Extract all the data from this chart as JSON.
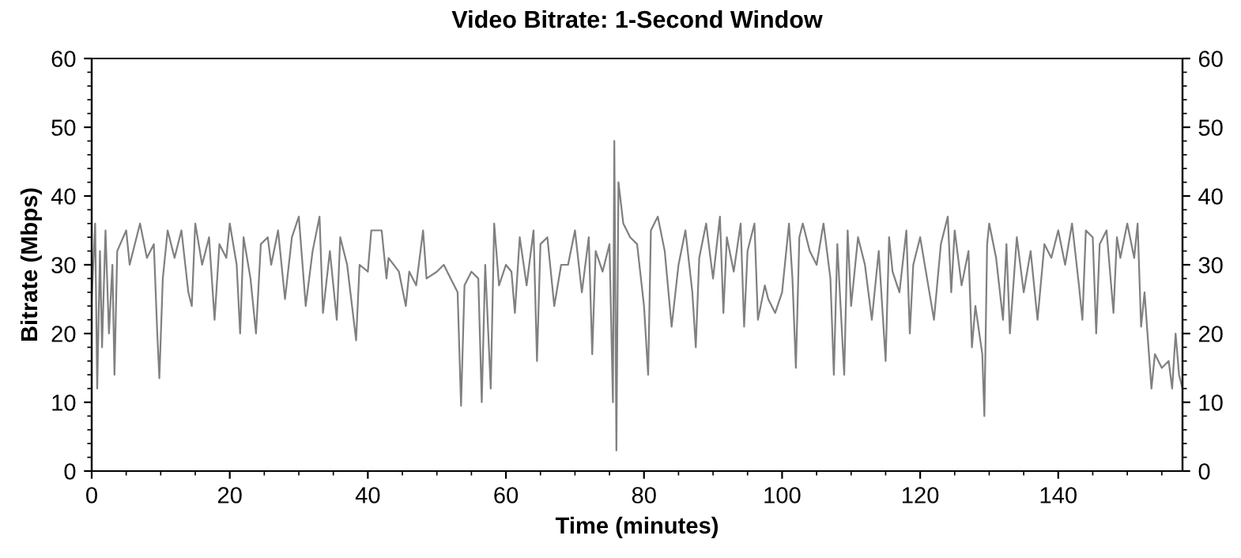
{
  "chart_data": {
    "type": "line",
    "title": "Video Bitrate: 1-Second Window",
    "xlabel": "Time (minutes)",
    "ylabel": "Bitrate (Mbps)",
    "xlim": [
      0,
      158
    ],
    "xticks": [
      0,
      20,
      40,
      60,
      80,
      100,
      120,
      140
    ],
    "ylim": [
      0,
      60
    ],
    "yticks": [
      0,
      10,
      20,
      30,
      40,
      50,
      60
    ],
    "y2lim": [
      0,
      60
    ],
    "y2ticks": [
      0,
      10,
      20,
      30,
      40,
      50,
      60
    ],
    "grid": false,
    "marker": "none",
    "line_style": "solid",
    "series": [
      {
        "color": "#808080",
        "x": [
          0,
          0.5,
          0.8,
          1.2,
          1.5,
          2,
          2.5,
          3,
          3.3,
          3.7,
          5,
          5.5,
          7,
          8,
          9,
          9.5,
          9.8,
          10.3,
          11,
          12,
          13,
          14,
          14.5,
          15,
          16,
          17,
          17.8,
          18.5,
          19.5,
          20,
          21,
          21.5,
          22,
          23,
          23.8,
          24.5,
          25.5,
          26,
          27,
          28,
          29,
          30,
          31,
          32,
          33,
          33.5,
          34.5,
          35.5,
          36,
          37,
          38.3,
          38.8,
          40,
          40.5,
          42,
          42.7,
          43,
          44.5,
          45.5,
          46,
          47,
          48,
          48.5,
          50,
          51,
          52,
          53,
          53.5,
          54,
          55,
          56,
          56.5,
          57,
          57.8,
          58.3,
          59,
          60,
          60.8,
          61.3,
          62,
          63,
          64,
          64.5,
          65,
          66,
          67,
          68,
          69,
          70,
          71,
          72,
          72.5,
          73,
          74,
          75,
          75.5,
          75.7,
          76,
          76.3,
          77,
          78,
          79,
          80,
          80.6,
          81,
          82,
          83,
          84,
          85,
          86,
          87,
          87.5,
          88,
          89,
          90,
          91,
          91.5,
          92,
          93,
          94,
          94.5,
          95,
          96,
          96.5,
          97.5,
          98,
          99,
          100,
          101,
          101.5,
          102,
          102.5,
          103,
          104,
          105,
          106,
          107,
          107.5,
          108,
          109,
          109.5,
          110,
          111,
          112,
          113,
          114,
          115,
          115.5,
          116,
          117,
          118,
          118.5,
          119,
          120,
          121,
          122,
          123,
          124,
          124.5,
          125,
          126,
          127,
          127.5,
          128,
          129,
          129.3,
          129.7,
          130,
          131,
          132,
          132.5,
          133,
          134,
          135,
          136,
          137,
          138,
          139,
          140,
          141,
          142,
          143,
          143.5,
          144,
          145,
          145.5,
          146,
          147,
          148,
          148.5,
          149,
          150,
          151,
          151.5,
          152,
          152.5,
          153,
          153.5,
          154,
          155,
          156,
          156.5,
          157,
          157.5,
          158
        ],
        "values": [
          25,
          36,
          12,
          32,
          18,
          35,
          20,
          30,
          14,
          32,
          35,
          30,
          36,
          31,
          33,
          20,
          13.5,
          28,
          35,
          31,
          35,
          26,
          24,
          36,
          30,
          34,
          22,
          33,
          31,
          36,
          30,
          20,
          34,
          28,
          20,
          33,
          34,
          30,
          35,
          25,
          34,
          37,
          24,
          32,
          37,
          23,
          32,
          22,
          34,
          30,
          19,
          30,
          29,
          35,
          35,
          28,
          31,
          29,
          24,
          29,
          27,
          35,
          28,
          29,
          30,
          28,
          26,
          9.5,
          27,
          29,
          28,
          10,
          30,
          12,
          36,
          27,
          30,
          29,
          23,
          34,
          27,
          35,
          16,
          33,
          34,
          24,
          30,
          30,
          35,
          26,
          34,
          17,
          32,
          29,
          33,
          10,
          48,
          3,
          42,
          36,
          34,
          33,
          24,
          14,
          35,
          37,
          32,
          21,
          30,
          35,
          26,
          18,
          31,
          36,
          28,
          37,
          23,
          34,
          29,
          36,
          21,
          32,
          36,
          22,
          27,
          25,
          23,
          26,
          36,
          28,
          15,
          34,
          36,
          32,
          30,
          36,
          28,
          14,
          33,
          14,
          35,
          24,
          34,
          30,
          22,
          32,
          16,
          34,
          29,
          26,
          35,
          20,
          30,
          34,
          28,
          22,
          33,
          37,
          26,
          35,
          27,
          32,
          18,
          24,
          17,
          8,
          33,
          36,
          31,
          22,
          33,
          20,
          34,
          26,
          32,
          22,
          33,
          31,
          35,
          30,
          36,
          27,
          22,
          35,
          34,
          20,
          33,
          35,
          23,
          34,
          31,
          36,
          31,
          36,
          21,
          26,
          19,
          12,
          17,
          15,
          16,
          12,
          20,
          14,
          12
        ]
      }
    ]
  }
}
